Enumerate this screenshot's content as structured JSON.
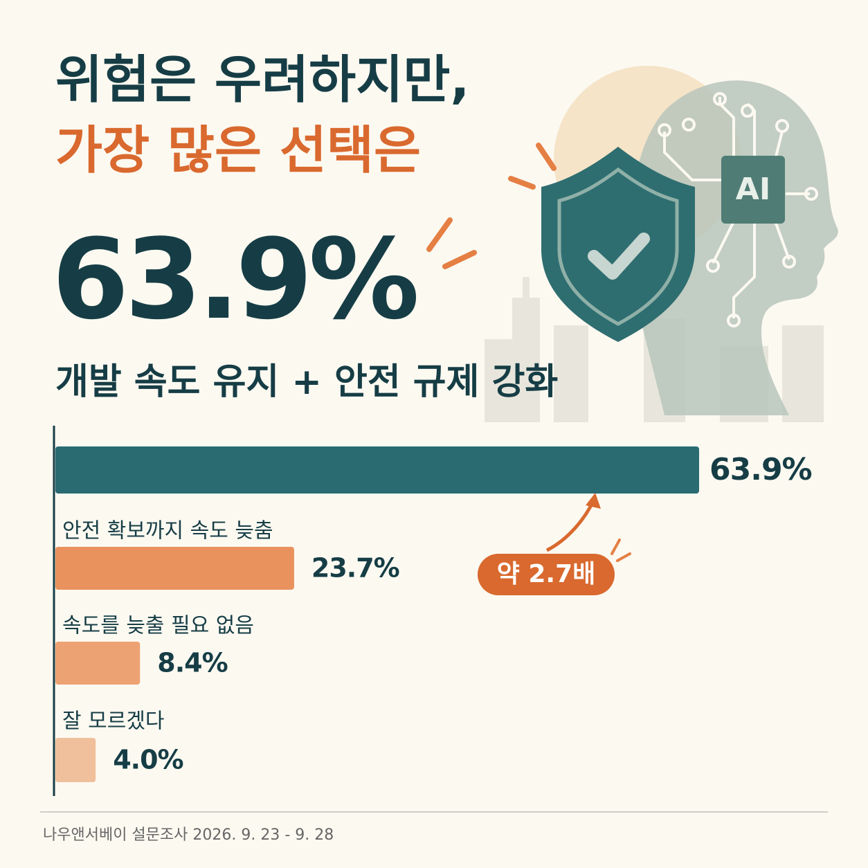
{
  "chart_data": {
    "type": "hbar",
    "title": "위험은 우려하지만,",
    "title_highlight": "가장 많은 선택은",
    "headline": "63.9%",
    "subtitle": "개발 속도 유지 + 안전 규제 강화",
    "categories": [
      null,
      "안전 확보까지 속도 늦춤",
      "속도를 늦출 필요 없음",
      "잘 모르겠다"
    ],
    "values": [
      63.9,
      23.7,
      8.4,
      4.0
    ],
    "value_labels": [
      "63.9%",
      "23.7%",
      "8.4%",
      "4.0%"
    ],
    "colors": [
      "#2a6b72",
      "#e9925e",
      "#eda273",
      "#f0c09c"
    ],
    "annotation": "약 2.7배",
    "source": "나우앤서베이 설문조사 2026. 9. 23 - 9. 28"
  },
  "illustration": {
    "label": "AI"
  }
}
